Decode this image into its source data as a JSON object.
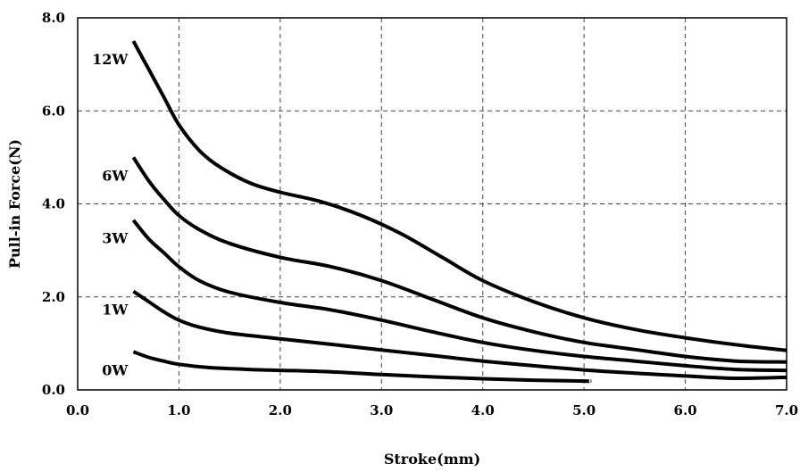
{
  "chart_data": {
    "type": "line",
    "title": "",
    "xlabel": "Stroke(mm)",
    "ylabel": "Pull-in Force(N)",
    "xlim": [
      0,
      7
    ],
    "ylim": [
      0,
      8
    ],
    "x_ticks": [
      "0.0",
      "1.0",
      "2.0",
      "3.0",
      "4.0",
      "5.0",
      "6.0",
      "7.0"
    ],
    "y_ticks": [
      "0.0",
      "2.0",
      "4.0",
      "6.0",
      "8.0"
    ],
    "grid": true,
    "line_color": "#000000",
    "series": [
      {
        "name": "12W",
        "points": [
          [
            0.55,
            7.5
          ],
          [
            0.7,
            6.9
          ],
          [
            0.85,
            6.3
          ],
          [
            1.0,
            5.7
          ],
          [
            1.2,
            5.15
          ],
          [
            1.4,
            4.8
          ],
          [
            1.7,
            4.45
          ],
          [
            2.0,
            4.25
          ],
          [
            2.4,
            4.05
          ],
          [
            2.8,
            3.75
          ],
          [
            3.2,
            3.35
          ],
          [
            3.6,
            2.85
          ],
          [
            4.0,
            2.35
          ],
          [
            4.5,
            1.9
          ],
          [
            5.0,
            1.55
          ],
          [
            5.5,
            1.3
          ],
          [
            6.0,
            1.12
          ],
          [
            6.5,
            0.97
          ],
          [
            7.0,
            0.85
          ]
        ]
      },
      {
        "name": "6W",
        "points": [
          [
            0.55,
            5.0
          ],
          [
            0.7,
            4.5
          ],
          [
            0.85,
            4.1
          ],
          [
            1.0,
            3.75
          ],
          [
            1.2,
            3.45
          ],
          [
            1.5,
            3.15
          ],
          [
            2.0,
            2.85
          ],
          [
            2.5,
            2.65
          ],
          [
            3.0,
            2.35
          ],
          [
            3.5,
            1.95
          ],
          [
            4.0,
            1.55
          ],
          [
            4.5,
            1.25
          ],
          [
            5.0,
            1.02
          ],
          [
            5.5,
            0.87
          ],
          [
            6.0,
            0.72
          ],
          [
            6.5,
            0.62
          ],
          [
            7.0,
            0.6
          ]
        ]
      },
      {
        "name": "3W",
        "points": [
          [
            0.55,
            3.65
          ],
          [
            0.7,
            3.25
          ],
          [
            0.85,
            2.95
          ],
          [
            1.0,
            2.65
          ],
          [
            1.2,
            2.35
          ],
          [
            1.5,
            2.1
          ],
          [
            2.0,
            1.88
          ],
          [
            2.5,
            1.72
          ],
          [
            3.0,
            1.5
          ],
          [
            3.5,
            1.25
          ],
          [
            4.0,
            1.02
          ],
          [
            4.5,
            0.85
          ],
          [
            5.0,
            0.72
          ],
          [
            5.5,
            0.62
          ],
          [
            6.0,
            0.52
          ],
          [
            6.5,
            0.44
          ],
          [
            7.0,
            0.42
          ]
        ]
      },
      {
        "name": "1W",
        "points": [
          [
            0.55,
            2.12
          ],
          [
            0.7,
            1.9
          ],
          [
            0.85,
            1.68
          ],
          [
            1.0,
            1.5
          ],
          [
            1.2,
            1.35
          ],
          [
            1.5,
            1.22
          ],
          [
            2.0,
            1.1
          ],
          [
            2.5,
            0.98
          ],
          [
            3.0,
            0.86
          ],
          [
            3.5,
            0.74
          ],
          [
            4.0,
            0.62
          ],
          [
            4.5,
            0.52
          ],
          [
            5.0,
            0.43
          ],
          [
            5.5,
            0.36
          ],
          [
            6.0,
            0.3
          ],
          [
            6.5,
            0.25
          ],
          [
            7.0,
            0.27
          ]
        ]
      },
      {
        "name": "0W",
        "points": [
          [
            0.55,
            0.82
          ],
          [
            0.7,
            0.7
          ],
          [
            0.85,
            0.62
          ],
          [
            1.0,
            0.55
          ],
          [
            1.3,
            0.48
          ],
          [
            1.7,
            0.44
          ],
          [
            2.0,
            0.42
          ],
          [
            2.5,
            0.39
          ],
          [
            3.0,
            0.33
          ],
          [
            3.5,
            0.28
          ],
          [
            4.0,
            0.24
          ],
          [
            4.5,
            0.21
          ],
          [
            5.0,
            0.19
          ],
          [
            5.05,
            0.19
          ]
        ]
      }
    ]
  }
}
